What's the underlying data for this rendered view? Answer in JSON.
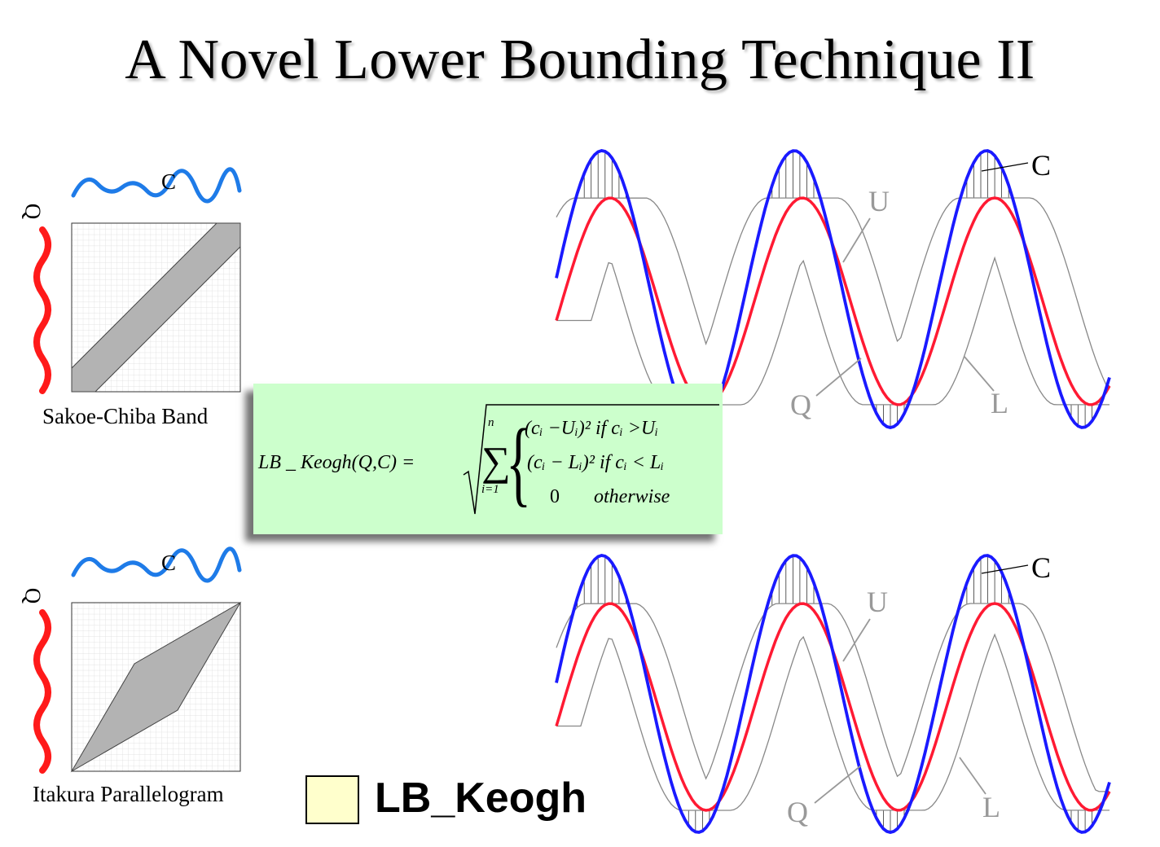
{
  "title": "A Novel Lower Bounding Technique II",
  "top_panel": {
    "c_label": "C",
    "q_label": "Q",
    "caption": "Sakoe-Chiba Band",
    "series_labels": {
      "c": "C",
      "u": "U",
      "q": "Q",
      "l": "L"
    }
  },
  "bottom_panel": {
    "c_label": "C",
    "q_label": "Q",
    "caption": "Itakura Parallelogram",
    "series_labels": {
      "c": "C",
      "u": "U",
      "q": "Q",
      "l": "L"
    }
  },
  "formula": {
    "lhs": "LB _ Keogh(Q,C) =",
    "sum_upper": "n",
    "sum_lower": "i=1",
    "case1": "(cᵢ −Uᵢ)²  if cᵢ >Uᵢ",
    "case2": "(cᵢ − Lᵢ)²  if cᵢ < Lᵢ",
    "case3_value": "0",
    "case3_cond": "otherwise"
  },
  "legend": {
    "label": "LB_Keogh",
    "swatch_color": "#ffffcc"
  },
  "colors": {
    "c_series": "#1a1aff",
    "q_series": "#ff1a33",
    "envelope": "#888888",
    "mini_c": "#1e7be8",
    "mini_q": "#ff1a1a",
    "formula_bg": "#ccffcc"
  }
}
